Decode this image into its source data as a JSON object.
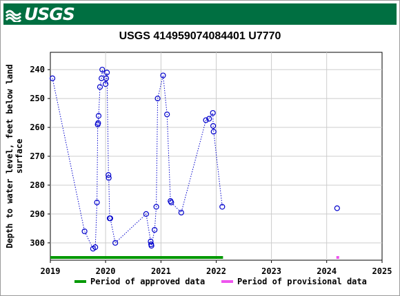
{
  "header": {
    "logo_text": "USGS",
    "logo_icon": "usgs-wave-icon",
    "bg_color": "#006f41"
  },
  "chart_data": {
    "type": "scatter",
    "title": "USGS 414959074084401 U7770",
    "ylabel_lines": [
      "Depth to water level, feet below land",
      "surface"
    ],
    "xlabel": "",
    "x_ticks": [
      "2019",
      "2020",
      "2021",
      "2022",
      "2023",
      "2024",
      "2025"
    ],
    "y_ticks": [
      "240",
      "250",
      "260",
      "270",
      "280",
      "290",
      "300"
    ],
    "xlim": [
      "2019-01-01",
      "2025-01-01"
    ],
    "ylim": [
      306,
      234
    ],
    "y_inverted": true,
    "grid": true,
    "series": [
      {
        "marker": "circle-open",
        "line": "dotted",
        "color": "#0000cc",
        "points": [
          {
            "x": "2019-01-15",
            "y": 243
          },
          {
            "x": "2019-08-15",
            "y": 296
          },
          {
            "x": "2019-10-10",
            "y": 302
          },
          {
            "x": "2019-10-25",
            "y": 301.5
          },
          {
            "x": "2019-11-05",
            "y": 286
          },
          {
            "x": "2019-11-10",
            "y": 259
          },
          {
            "x": "2019-11-13",
            "y": 258.5
          },
          {
            "x": "2019-11-16",
            "y": 256
          },
          {
            "x": "2019-11-25",
            "y": 246
          },
          {
            "x": "2019-12-05",
            "y": 243
          },
          {
            "x": "2019-12-10",
            "y": 240
          },
          {
            "x": "2020-01-01",
            "y": 245
          },
          {
            "x": "2020-01-05",
            "y": 243
          },
          {
            "x": "2020-01-10",
            "y": 241
          },
          {
            "x": "2020-01-20",
            "y": 276.5
          },
          {
            "x": "2020-01-22",
            "y": 277.5
          },
          {
            "x": "2020-01-28",
            "y": 291.5
          },
          {
            "x": "2020-02-01",
            "y": 291.5
          },
          {
            "x": "2020-03-05",
            "y": 300
          },
          {
            "x": "2020-09-25",
            "y": 290
          },
          {
            "x": "2020-10-25",
            "y": 299.5
          },
          {
            "x": "2020-10-28",
            "y": 300.5
          },
          {
            "x": "2020-10-30",
            "y": 301
          },
          {
            "x": "2020-11-20",
            "y": 295.5
          },
          {
            "x": "2020-12-01",
            "y": 287.5
          },
          {
            "x": "2020-12-10",
            "y": 250
          },
          {
            "x": "2021-01-15",
            "y": 242
          },
          {
            "x": "2021-02-10",
            "y": 255.5
          },
          {
            "x": "2021-03-05",
            "y": 285.5
          },
          {
            "x": "2021-03-10",
            "y": 286
          },
          {
            "x": "2021-05-15",
            "y": 289.5
          },
          {
            "x": "2021-10-25",
            "y": 257.5
          },
          {
            "x": "2021-11-15",
            "y": 257
          },
          {
            "x": "2021-12-10",
            "y": 255
          },
          {
            "x": "2021-12-12",
            "y": 259.5
          },
          {
            "x": "2021-12-15",
            "y": 261.5
          },
          {
            "x": "2022-02-10",
            "y": 287.5
          }
        ]
      },
      {
        "marker": "circle-open",
        "line": "none",
        "color": "#0000cc",
        "points": [
          {
            "x": "2024-03-10",
            "y": 288
          }
        ]
      }
    ],
    "periods": [
      {
        "label": "Period of approved data",
        "color": "#009900",
        "start": "2019-01-01",
        "end": "2022-02-15"
      },
      {
        "label": "Period of provisional data",
        "color": "#ee55ee",
        "start": "2024-03-05",
        "end": "2024-03-15"
      }
    ]
  }
}
